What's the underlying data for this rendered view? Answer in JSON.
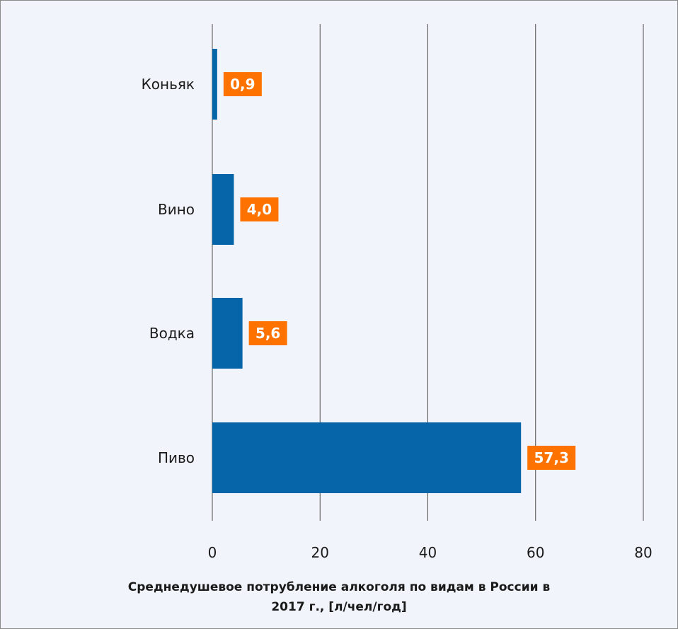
{
  "chart_data": {
    "type": "bar",
    "orientation": "horizontal",
    "categories": [
      "Коньяк",
      "Вино",
      "Водка",
      "Пиво"
    ],
    "values": [
      0.9,
      4.0,
      5.6,
      57.3
    ],
    "value_labels": [
      "0,9",
      "4,0",
      "5,6",
      "57,3"
    ],
    "xlim": [
      0,
      80
    ],
    "x_ticks": [
      0,
      20,
      40,
      60,
      80
    ],
    "grid": "vertical",
    "title_lines": [
      "Среднедушевое потрубление алкоголя по видам в России в",
      "2017 г., [л/чел/год]"
    ],
    "colors": {
      "bar": "#0565a8",
      "label_box": "#fe7200",
      "grid": "#4d4d4d",
      "background": "#f1f4fa"
    }
  }
}
